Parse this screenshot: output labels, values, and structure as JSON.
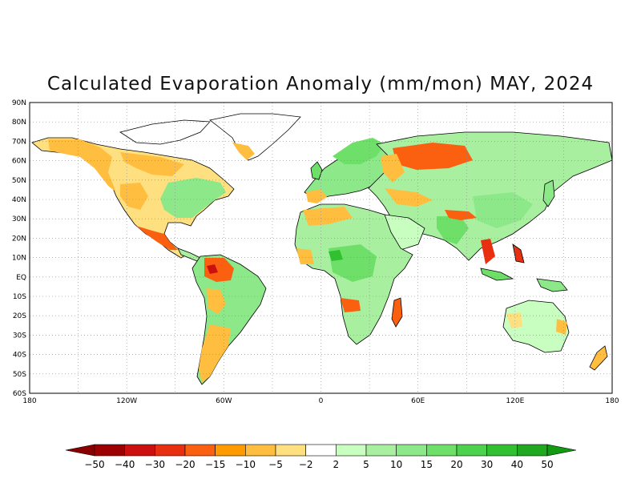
{
  "title": "Calculated Evaporation Anomaly (mm/mon) MAY, 2024",
  "latitude_labels": [
    "90N",
    "80N",
    "70N",
    "60N",
    "50N",
    "40N",
    "30N",
    "20N",
    "10N",
    "EQ",
    "10S",
    "20S",
    "30S",
    "40S",
    "50S",
    "60S"
  ],
  "longitude_labels": [
    "180",
    "120W",
    "60W",
    "0",
    "60E",
    "120E",
    "180"
  ],
  "colorbar": {
    "labels": [
      "-50",
      "-40",
      "-30",
      "-20",
      "-15",
      "-10",
      "-5",
      "-2",
      "2",
      "5",
      "10",
      "15",
      "20",
      "30",
      "40",
      "50"
    ],
    "colors": [
      "#9c0000",
      "#cc1010",
      "#e83010",
      "#fa6010",
      "#ff9a00",
      "#ffbe40",
      "#ffe080",
      "#ffffff",
      "#c8ffc0",
      "#a8f0a0",
      "#8ce888",
      "#6ee06a",
      "#4cd24c",
      "#30c030",
      "#20a820"
    ],
    "low_arrow_color": "#8a0000",
    "high_arrow_color": "#129a12"
  },
  "map": {
    "land_color": "#ffffff",
    "grid": "dotted",
    "regions": [
      {
        "name": "alaska-canada-west",
        "color": "#ffbe40"
      },
      {
        "name": "western-us",
        "color": "#ffe080"
      },
      {
        "name": "eastern-us",
        "color": "#8ce888"
      },
      {
        "name": "mexico",
        "color": "#fa6010"
      },
      {
        "name": "amazon",
        "color": "#e83010"
      },
      {
        "name": "brazil-east",
        "color": "#8ce888"
      },
      {
        "name": "patagonia",
        "color": "#ffbe40"
      },
      {
        "name": "sahara-north",
        "color": "#ffbe40"
      },
      {
        "name": "central-africa",
        "color": "#6ee06a"
      },
      {
        "name": "southern-africa",
        "color": "#a8f0a0"
      },
      {
        "name": "madagascar",
        "color": "#fa6010"
      },
      {
        "name": "scandinavia",
        "color": "#6ee06a"
      },
      {
        "name": "russia",
        "color": "#fa6010"
      },
      {
        "name": "siberia",
        "color": "#a8f0a0"
      },
      {
        "name": "india-china",
        "color": "#6ee06a"
      },
      {
        "name": "southeast-asia",
        "color": "#e83010"
      },
      {
        "name": "australia",
        "color": "#c8ffc0"
      },
      {
        "name": "greenland",
        "color": "#ffffff"
      }
    ]
  }
}
